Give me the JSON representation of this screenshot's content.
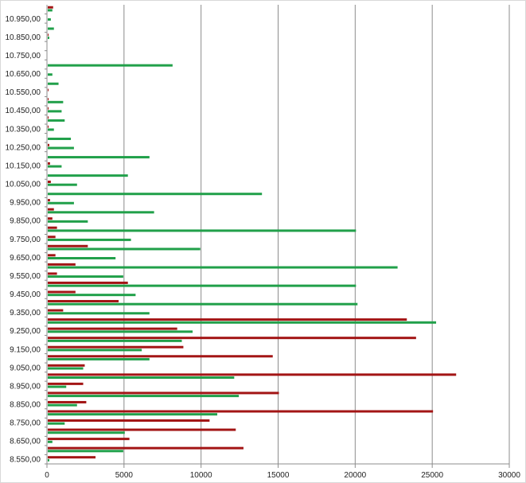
{
  "chart_data": {
    "type": "bar",
    "orientation": "horizontal",
    "title": "",
    "xlabel": "",
    "ylabel": "",
    "xlim": [
      0,
      30000
    ],
    "x_ticks": [
      "0",
      "5000",
      "10000",
      "15000",
      "20000",
      "25000",
      "30000"
    ],
    "y_tick_labels": [
      "8.550,00",
      "8.650,00",
      "8.750,00",
      "8.850,00",
      "8.950,00",
      "9.050,00",
      "9.150,00",
      "9.250,00",
      "9.350,00",
      "9.450,00",
      "9.550,00",
      "9.650,00",
      "9.750,00",
      "9.850,00",
      "9.950,00",
      "10.050,00",
      "10.150,00",
      "10.250,00",
      "10.350,00",
      "10.450,00",
      "10.550,00",
      "10.650,00",
      "10.750,00",
      "10.850,00",
      "10.950,00"
    ],
    "grid": "vertical",
    "legend": "none",
    "categories_count": 50,
    "series": [
      {
        "name": "red",
        "color": "#a31515",
        "values": [
          3100,
          12700,
          5300,
          12200,
          10500,
          25000,
          2500,
          15000,
          2300,
          26500,
          2400,
          14600,
          8800,
          23900,
          8400,
          23300,
          1000,
          4600,
          1800,
          5200,
          600,
          1800,
          500,
          2600,
          500,
          600,
          300,
          400,
          150,
          0,
          200,
          0,
          150,
          0,
          100,
          0,
          50,
          50,
          50,
          50,
          50,
          0,
          0,
          0,
          0,
          0,
          50,
          0,
          0,
          350
        ]
      },
      {
        "name": "green",
        "color": "#21a04a",
        "values": [
          100,
          4900,
          300,
          5000,
          1100,
          11000,
          1900,
          12400,
          1200,
          12100,
          2300,
          6600,
          6100,
          8700,
          9400,
          25200,
          6600,
          20100,
          5700,
          20000,
          4900,
          22700,
          4400,
          9900,
          5400,
          20000,
          2600,
          6900,
          1700,
          13900,
          1900,
          5200,
          900,
          6600,
          1700,
          1500,
          400,
          1100,
          900,
          1000,
          0,
          700,
          300,
          8100,
          0,
          0,
          100,
          400,
          200,
          300
        ]
      }
    ]
  }
}
